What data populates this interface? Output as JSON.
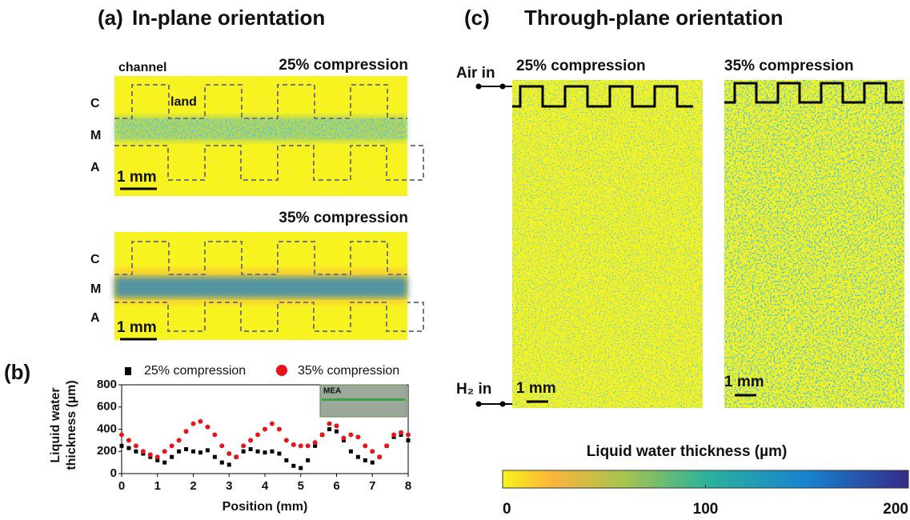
{
  "panel_a": {
    "label": "(a)",
    "title": "In-plane orientation",
    "top": {
      "condition": "25% compression",
      "channel": "channel",
      "land": "land",
      "layers": [
        "C",
        "M",
        "A"
      ],
      "scale": "1 mm"
    },
    "bottom": {
      "condition": "35% compression",
      "layers": [
        "C",
        "M",
        "A"
      ],
      "scale": "1 mm"
    }
  },
  "panel_b_label": "(b)",
  "chart_data": {
    "type": "scatter",
    "xlabel": "Position (mm)",
    "ylabel": [
      "Liquid water",
      "thickness (µm)"
    ],
    "inset_label": "MEA",
    "x": [
      0,
      0.2,
      0.4,
      0.6,
      0.8,
      1,
      1.2,
      1.4,
      1.6,
      1.8,
      2,
      2.2,
      2.4,
      2.6,
      2.8,
      3,
      3.2,
      3.4,
      3.6,
      3.8,
      4,
      4.2,
      4.4,
      4.6,
      4.8,
      5,
      5.2,
      5.4,
      5.6,
      5.8,
      6,
      6.2,
      6.4,
      6.6,
      6.8,
      7,
      7.2,
      7.4,
      7.6,
      7.8,
      8
    ],
    "series": [
      {
        "name": "25% compression",
        "color": "#000000",
        "marker": "square",
        "values": [
          250,
          230,
          200,
          180,
          150,
          120,
          100,
          150,
          200,
          220,
          200,
          190,
          210,
          150,
          100,
          80,
          150,
          200,
          220,
          200,
          190,
          200,
          180,
          120,
          70,
          50,
          120,
          250,
          350,
          400,
          380,
          300,
          200,
          150,
          120,
          100,
          150,
          250,
          330,
          350,
          300
        ]
      },
      {
        "name": "35% compression",
        "color": "#e8141c",
        "marker": "circle",
        "values": [
          350,
          300,
          250,
          200,
          170,
          150,
          200,
          250,
          300,
          380,
          450,
          470,
          420,
          350,
          250,
          180,
          150,
          250,
          300,
          350,
          400,
          450,
          400,
          300,
          260,
          250,
          250,
          280,
          350,
          450,
          430,
          320,
          350,
          330,
          250,
          200,
          150,
          250,
          350,
          370,
          350
        ]
      }
    ],
    "xlim": [
      0,
      8
    ],
    "ylim": [
      0,
      800
    ],
    "xticks": [
      0,
      1,
      2,
      3,
      4,
      5,
      6,
      7,
      8
    ],
    "yticks": [
      0,
      200,
      400,
      600,
      800
    ]
  },
  "panel_c": {
    "label": "(c)",
    "title": "Through-plane orientation",
    "air_in": "Air in",
    "h2_in": "H₂ in",
    "left": {
      "condition": "25% compression",
      "scale": "1 mm"
    },
    "right": {
      "condition": "35% compression",
      "scale": "1 mm"
    },
    "colorbar": {
      "label": "Liquid water thickness (µm)",
      "lim": [
        0,
        200
      ],
      "ticks": [
        0,
        100,
        200
      ]
    }
  }
}
